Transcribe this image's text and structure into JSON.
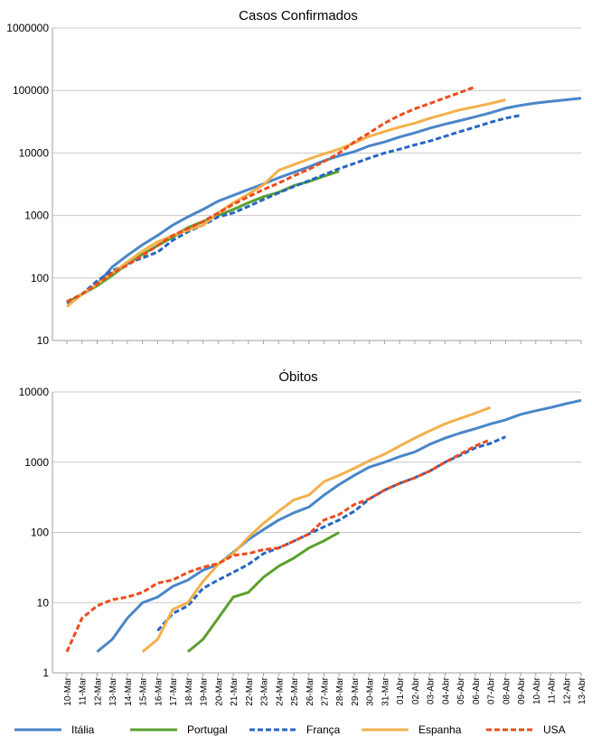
{
  "x_labels": [
    "10-Mar",
    "11-Mar",
    "12-Mar",
    "13-Mar",
    "14-Mar",
    "15-Mar",
    "16-Mar",
    "17-Mar",
    "18-Mar",
    "19-Mar",
    "20-Mar",
    "21-Mar",
    "22-Mar",
    "23-Mar",
    "24-Mar",
    "25-Mar",
    "26-Mar",
    "27-Mar",
    "28-Mar",
    "29-Mar",
    "30-Mar",
    "31-Mar",
    "01-Abr",
    "02-Abr",
    "03-Abr",
    "04-Abr",
    "05-Abr",
    "06-Abr",
    "07-Abr",
    "08-Abr",
    "09-Abr",
    "10-Abr",
    "11-Abr",
    "12-Abr",
    "13-Abr"
  ],
  "series_styles": [
    {
      "name": "Itália",
      "color": "#4a86c8",
      "dash": "solid"
    },
    {
      "name": "Portugal",
      "color": "#5aa02c",
      "dash": "solid"
    },
    {
      "name": "França",
      "color": "#2566c4",
      "dash": "dashed"
    },
    {
      "name": "Espanha",
      "color": "#f4b04c",
      "dash": "solid"
    },
    {
      "name": "USA",
      "color": "#ee4b1c",
      "dash": "dashed"
    }
  ],
  "chart_data": [
    {
      "type": "line",
      "title": "Casos Confirmados",
      "y_scale": "log",
      "ylim": [
        10,
        1000000
      ],
      "y_ticks": [
        "10",
        "100",
        "1000",
        "10000",
        "100000",
        "1000000"
      ],
      "grid": true,
      "legend": "bottom",
      "series": [
        {
          "name": "Itália",
          "start": "10-Mar",
          "values": [
            40,
            55,
            80,
            150,
            230,
            340,
            480,
            700,
            950,
            1250,
            1700,
            2100,
            2600,
            3200,
            4000,
            4900,
            6000,
            7500,
            9000,
            10500,
            13000,
            15000,
            18000,
            21000,
            25000,
            29000,
            33000,
            38000,
            44000,
            52000,
            58000,
            63000,
            67000,
            71000,
            75000
          ]
        },
        {
          "name": "Portugal",
          "start": "10-Mar",
          "values": [
            40,
            55,
            75,
            110,
            170,
            240,
            330,
            450,
            640,
            800,
            1000,
            1250,
            1600,
            2000,
            2350,
            3000,
            3500,
            4250,
            5100
          ]
        },
        {
          "name": "França",
          "start": "10-Mar",
          "values": [
            40,
            55,
            90,
            130,
            170,
            210,
            260,
            400,
            550,
            700,
            950,
            1100,
            1400,
            1800,
            2300,
            2900,
            3600,
            4500,
            5600,
            6800,
            8300,
            10000,
            11500,
            13500,
            15500,
            18500,
            22000,
            26000,
            31000,
            36000,
            40000
          ]
        },
        {
          "name": "Espanha",
          "start": "10-Mar",
          "values": [
            35,
            55,
            80,
            120,
            180,
            270,
            380,
            480,
            580,
            700,
            1100,
            1600,
            2200,
            3100,
            5300,
            6500,
            8000,
            9700,
            11500,
            14500,
            18500,
            22000,
            26000,
            30000,
            36000,
            42000,
            49000,
            55000,
            62000,
            71000
          ]
        },
        {
          "name": "USA",
          "start": "10-Mar",
          "values": [
            42,
            55,
            80,
            120,
            160,
            230,
            330,
            480,
            620,
            800,
            1100,
            1500,
            2000,
            2600,
            3300,
            4300,
            5500,
            7300,
            10000,
            15000,
            21000,
            30000,
            40000,
            51000,
            62000,
            76000,
            93000,
            115000
          ]
        }
      ]
    },
    {
      "type": "line",
      "title": "Óbitos",
      "y_scale": "log",
      "ylim": [
        1,
        10000
      ],
      "y_ticks": [
        "1",
        "10",
        "100",
        "1000",
        "10000"
      ],
      "grid": true,
      "legend": "bottom",
      "series": [
        {
          "name": "Itália",
          "start": "12-Mar",
          "values": [
            2,
            3,
            6,
            10,
            12,
            17,
            21,
            29,
            35,
            52,
            79,
            110,
            150,
            190,
            230,
            340,
            480,
            650,
            850,
            1000,
            1200,
            1400,
            1800,
            2200,
            2600,
            3000,
            3500,
            4000,
            4800,
            5400,
            6000,
            6800,
            7600
          ]
        },
        {
          "name": "Portugal",
          "start": "18-Mar",
          "values": [
            2,
            3,
            6,
            12,
            14,
            23,
            33,
            43,
            60,
            76,
            100
          ]
        },
        {
          "name": "França",
          "start": "16-Mar",
          "values": [
            4,
            7,
            9,
            16,
            21,
            27,
            35,
            50,
            60,
            75,
            95,
            120,
            150,
            200,
            300,
            400,
            500,
            600,
            750,
            1000,
            1250,
            1600,
            1850,
            2300
          ]
        },
        {
          "name": "Espanha",
          "start": "15-Mar",
          "values": [
            2,
            3,
            8,
            10,
            20,
            35,
            50,
            85,
            135,
            200,
            290,
            340,
            530,
            650,
            820,
            1050,
            1300,
            1700,
            2200,
            2800,
            3500,
            4200,
            5000,
            6000
          ]
        },
        {
          "name": "USA",
          "start": "10-Mar",
          "values": [
            2,
            6,
            9,
            11,
            12,
            14,
            19,
            21,
            27,
            32,
            36,
            47,
            50,
            57,
            60,
            75,
            95,
            150,
            180,
            250,
            300,
            400,
            500,
            600,
            750,
            1000,
            1300,
            1700,
            2100
          ]
        }
      ]
    }
  ]
}
